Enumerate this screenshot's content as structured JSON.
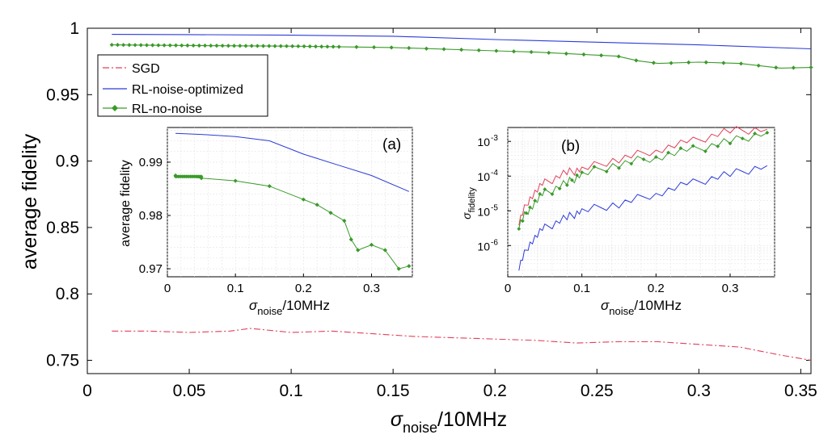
{
  "chart_data": [
    {
      "id": "main",
      "type": "line",
      "xlabel": "σ",
      "xlabel_sub": "noise",
      "xlabel_suffix": "/10MHz",
      "ylabel": "average fidelity",
      "xlim": [
        0,
        0.355
      ],
      "ylim": [
        0.74,
        1.0
      ],
      "xticks": [
        0,
        0.05,
        0.1,
        0.15,
        0.2,
        0.25,
        0.3,
        0.35
      ],
      "xtick_labels": [
        "0",
        "0.05",
        "0.1",
        "0.15",
        "0.2",
        "0.25",
        "0.3",
        "0.35"
      ],
      "yticks": [
        0.75,
        0.8,
        0.85,
        0.9,
        0.95,
        1.0
      ],
      "ytick_labels": [
        "0.75",
        "0.8",
        "0.85",
        "0.9",
        "0.95",
        "1"
      ],
      "legend": {
        "position": "top-left",
        "entries": [
          "SGD",
          "RL-noise-optimized",
          "RL-no-noise"
        ]
      },
      "series": [
        {
          "name": "SGD",
          "color": "#e0405a",
          "style": "dash-dot",
          "x": [
            0.012,
            0.03,
            0.05,
            0.07,
            0.08,
            0.1,
            0.12,
            0.14,
            0.16,
            0.18,
            0.2,
            0.22,
            0.24,
            0.26,
            0.28,
            0.3,
            0.32,
            0.34,
            0.355
          ],
          "y": [
            0.772,
            0.772,
            0.771,
            0.772,
            0.774,
            0.771,
            0.772,
            0.77,
            0.768,
            0.767,
            0.766,
            0.765,
            0.763,
            0.764,
            0.764,
            0.762,
            0.76,
            0.754,
            0.75
          ]
        },
        {
          "name": "RL-noise-optimized",
          "color": "#2b3bd8",
          "style": "solid",
          "x": [
            0.012,
            0.05,
            0.1,
            0.15,
            0.2,
            0.25,
            0.3,
            0.355
          ],
          "y": [
            0.9954,
            0.9952,
            0.9948,
            0.994,
            0.9915,
            0.9895,
            0.9875,
            0.9845
          ]
        },
        {
          "name": "RL-no-noise",
          "color": "#3a9a2a",
          "style": "solid-diamond",
          "x": [
            0.012,
            0.05,
            0.1,
            0.15,
            0.2,
            0.22,
            0.24,
            0.26,
            0.27,
            0.28,
            0.3,
            0.32,
            0.34,
            0.355
          ],
          "y": [
            0.9875,
            0.987,
            0.9865,
            0.9855,
            0.983,
            0.982,
            0.9805,
            0.979,
            0.9755,
            0.9735,
            0.9745,
            0.9735,
            0.97,
            0.9705
          ]
        }
      ]
    },
    {
      "id": "inset-a",
      "type": "line",
      "panel_label": "(a)",
      "xlabel": "σ",
      "xlabel_sub": "noise",
      "xlabel_suffix": "/10MHz",
      "ylabel": "average fidelity",
      "xlim": [
        0,
        0.36
      ],
      "ylim": [
        0.9685,
        0.9965
      ],
      "xticks": [
        0,
        0.1,
        0.2,
        0.3
      ],
      "xtick_labels": [
        "0",
        "0.1",
        "0.2",
        "0.3"
      ],
      "yticks": [
        0.97,
        0.98,
        0.99
      ],
      "ytick_labels": [
        "0.97",
        "0.98",
        "0.99"
      ],
      "series": [
        {
          "name": "RL-noise-optimized",
          "color": "#2b3bd8",
          "x": [
            0.012,
            0.05,
            0.1,
            0.15,
            0.2,
            0.25,
            0.3,
            0.355
          ],
          "y": [
            0.9954,
            0.9952,
            0.9948,
            0.994,
            0.9915,
            0.9895,
            0.9875,
            0.9845
          ]
        },
        {
          "name": "RL-no-noise",
          "color": "#3a9a2a",
          "x": [
            0.012,
            0.05,
            0.1,
            0.15,
            0.2,
            0.22,
            0.24,
            0.26,
            0.27,
            0.28,
            0.3,
            0.32,
            0.34,
            0.355
          ],
          "y": [
            0.9875,
            0.987,
            0.9865,
            0.9855,
            0.983,
            0.982,
            0.9805,
            0.979,
            0.9755,
            0.9735,
            0.9745,
            0.9735,
            0.97,
            0.9705
          ]
        }
      ]
    },
    {
      "id": "inset-b",
      "type": "line",
      "panel_label": "(b)",
      "xlabel": "σ",
      "xlabel_sub": "noise",
      "xlabel_suffix": "/10MHz",
      "ylabel": "σ",
      "ylabel_sub": "fidelity",
      "yscale": "log",
      "xlim": [
        0,
        0.36
      ],
      "ylim_exp": [
        -6.9,
        -2.6
      ],
      "xticks": [
        0,
        0.1,
        0.2,
        0.3
      ],
      "xtick_labels": [
        "0",
        "0.1",
        "0.2",
        "0.3"
      ],
      "yticks_exp": [
        -3,
        -4,
        -5,
        -6
      ],
      "ytick_base": "10",
      "ytick_exponents": [
        "-3",
        "-4",
        "-5",
        "-6"
      ],
      "series": [
        {
          "name": "SGD",
          "color": "#e0405a",
          "x": [
            0.015,
            0.03,
            0.05,
            0.08,
            0.1,
            0.15,
            0.2,
            0.25,
            0.3,
            0.35
          ],
          "log10_y": [
            -5.3,
            -4.6,
            -4.2,
            -3.9,
            -3.8,
            -3.5,
            -3.25,
            -3.0,
            -2.7,
            -2.65
          ]
        },
        {
          "name": "RL-noise-optimized",
          "color": "#2b3bd8",
          "x": [
            0.015,
            0.03,
            0.05,
            0.08,
            0.1,
            0.15,
            0.2,
            0.25,
            0.3,
            0.35
          ],
          "log10_y": [
            -6.6,
            -5.9,
            -5.5,
            -5.2,
            -5.0,
            -4.8,
            -4.5,
            -4.2,
            -3.95,
            -3.7
          ]
        },
        {
          "name": "RL-no-noise",
          "color": "#3a9a2a",
          "x": [
            0.015,
            0.03,
            0.05,
            0.08,
            0.1,
            0.15,
            0.2,
            0.25,
            0.3,
            0.35
          ],
          "log10_y": [
            -5.4,
            -4.9,
            -4.5,
            -4.2,
            -3.95,
            -3.65,
            -3.45,
            -3.25,
            -3.0,
            -2.75
          ]
        }
      ]
    }
  ]
}
